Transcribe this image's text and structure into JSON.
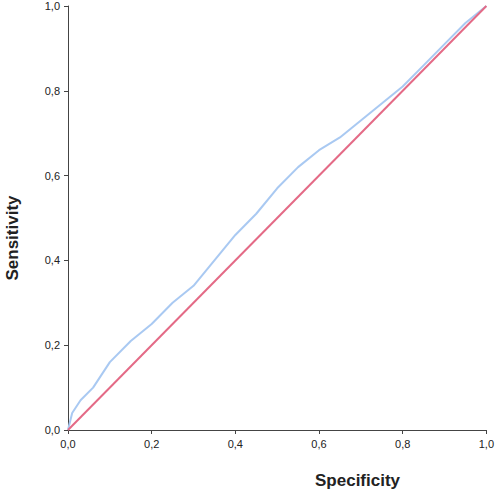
{
  "chart_data": {
    "type": "line",
    "x_label": "Specificity",
    "y_label": "Sensitivity",
    "xlim": [
      0,
      1
    ],
    "ylim": [
      0,
      1
    ],
    "xticks": [
      {
        "value": 0,
        "label": "0,0"
      },
      {
        "value": 0.2,
        "label": "0,2"
      },
      {
        "value": 0.4,
        "label": "0,4"
      },
      {
        "value": 0.6,
        "label": "0,6"
      },
      {
        "value": 0.8,
        "label": "0,8"
      },
      {
        "value": 1,
        "label": "1,0"
      }
    ],
    "yticks": [
      {
        "value": 0,
        "label": "0,0"
      },
      {
        "value": 0.2,
        "label": "0,2"
      },
      {
        "value": 0.4,
        "label": "0,4"
      },
      {
        "value": 0.6,
        "label": "0,6"
      },
      {
        "value": 0.8,
        "label": "0,8"
      },
      {
        "value": 1,
        "label": "1,0"
      }
    ],
    "grid": false,
    "series": [
      {
        "color": "#a9c9f2",
        "line_style": "solid",
        "x": [
          0,
          0.01,
          0.03,
          0.06,
          0.1,
          0.15,
          0.2,
          0.25,
          0.3,
          0.35,
          0.4,
          0.45,
          0.5,
          0.55,
          0.6,
          0.65,
          0.7,
          0.75,
          0.8,
          0.85,
          0.9,
          0.95,
          1
        ],
        "values": [
          0,
          0.04,
          0.07,
          0.1,
          0.16,
          0.21,
          0.25,
          0.3,
          0.34,
          0.4,
          0.46,
          0.51,
          0.57,
          0.62,
          0.66,
          0.69,
          0.73,
          0.77,
          0.81,
          0.86,
          0.91,
          0.96,
          1
        ]
      },
      {
        "color": "#e46a86",
        "line_style": "solid",
        "x": [
          0,
          1
        ],
        "values": [
          0,
          1
        ]
      }
    ]
  }
}
